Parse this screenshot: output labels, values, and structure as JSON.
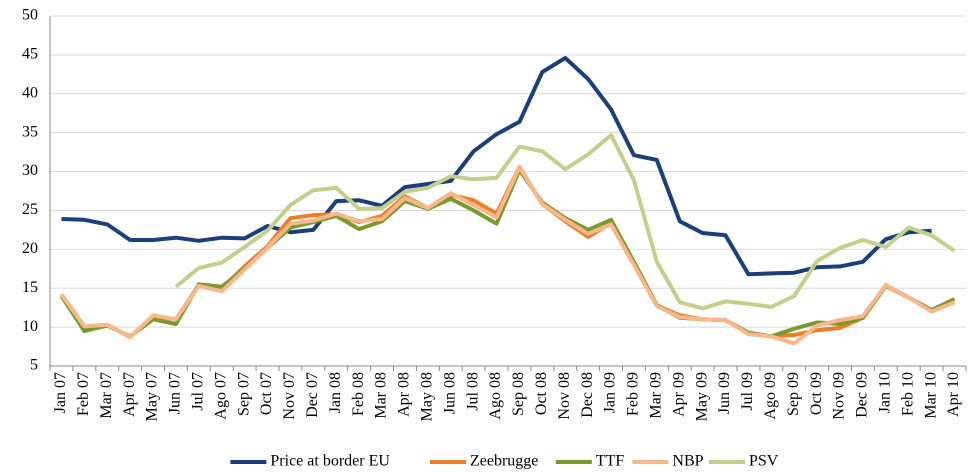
{
  "chart_data": {
    "type": "line",
    "categories": [
      "Jan 07",
      "Feb 07",
      "Mar 07",
      "Apr 07",
      "May 07",
      "Jun 07",
      "Jul 07",
      "Ago 07",
      "Sep 07",
      "Oct 07",
      "Nov 07",
      "Dec 07",
      "Jan 08",
      "Feb 08",
      "Mar 08",
      "Apr 08",
      "May 08",
      "Jun 08",
      "Jul 08",
      "Ago 08",
      "Sep 08",
      "Oct 08",
      "Nov 08",
      "Dec 08",
      "Jan 09",
      "Feb 09",
      "Mar 09",
      "Apr 09",
      "May 09",
      "Jun 09",
      "Jul 09",
      "Ago 09",
      "Sep 09",
      "Oct 09",
      "Nov 09",
      "Dec 09",
      "Jan 10",
      "Feb 10",
      "Mar 10",
      "Apr 10"
    ],
    "series": [
      {
        "name": "Price at border EU",
        "color": "#1b3f7a",
        "values": [
          23.9,
          23.8,
          23.2,
          21.2,
          21.2,
          21.5,
          21.1,
          21.5,
          21.4,
          23.0,
          22.2,
          22.5,
          26.2,
          26.3,
          25.6,
          28.0,
          28.4,
          28.8,
          32.6,
          34.8,
          36.4,
          42.8,
          44.6,
          41.9,
          38.0,
          32.1,
          31.5,
          23.6,
          22.1,
          21.8,
          16.8,
          16.9,
          17.0,
          17.7,
          17.8,
          18.4,
          21.3,
          22.2,
          22.4,
          null
        ]
      },
      {
        "name": "Zeebrugge",
        "color": "#f07c28",
        "values": [
          14.2,
          10.0,
          10.3,
          8.7,
          11.4,
          11.0,
          15.4,
          15.0,
          17.8,
          20.4,
          24.0,
          24.4,
          24.5,
          23.5,
          24.3,
          26.8,
          25.3,
          27.0,
          26.3,
          24.6,
          30.6,
          25.8,
          23.6,
          21.6,
          23.4,
          18.2,
          12.8,
          11.5,
          11.0,
          10.9,
          9.2,
          8.8,
          9.0,
          9.6,
          9.9,
          11.2,
          15.4,
          13.8,
          12.2,
          13.2
        ]
      },
      {
        "name": "TTF",
        "color": "#7a9a2e",
        "values": [
          14.0,
          9.5,
          10.2,
          8.8,
          11.0,
          10.4,
          15.5,
          15.2,
          17.5,
          20.2,
          22.8,
          23.5,
          24.3,
          22.6,
          23.6,
          26.2,
          25.2,
          26.5,
          25.0,
          23.3,
          30.2,
          26.0,
          24.0,
          22.5,
          23.8,
          18.4,
          12.8,
          11.2,
          11.0,
          10.9,
          9.3,
          8.8,
          9.8,
          10.6,
          10.4,
          11.2,
          15.3,
          13.8,
          12.2,
          13.6
        ]
      },
      {
        "name": "NBP",
        "color": "#f9b78c",
        "values": [
          14.2,
          10.1,
          10.3,
          8.7,
          11.5,
          11.0,
          15.3,
          14.6,
          17.4,
          20.2,
          23.3,
          23.7,
          24.6,
          23.6,
          23.9,
          26.6,
          25.3,
          27.2,
          25.7,
          24.1,
          30.6,
          25.8,
          23.8,
          22.0,
          23.2,
          18.0,
          12.7,
          11.3,
          11.0,
          10.9,
          9.1,
          8.8,
          7.9,
          10.2,
          10.9,
          11.4,
          15.4,
          13.8,
          12.0,
          13.2
        ]
      },
      {
        "name": "PSV",
        "color": "#c5cf8c",
        "values": [
          null,
          null,
          null,
          null,
          null,
          15.2,
          17.6,
          18.3,
          20.3,
          22.4,
          25.7,
          27.6,
          27.9,
          25.2,
          25.3,
          27.4,
          27.9,
          29.4,
          29.0,
          29.2,
          33.2,
          32.6,
          30.3,
          32.2,
          34.7,
          28.9,
          18.4,
          13.2,
          12.4,
          13.3,
          13.0,
          12.6,
          14.0,
          18.5,
          20.2,
          21.2,
          20.3,
          22.8,
          21.8,
          19.8
        ]
      }
    ],
    "ylim": [
      5,
      50
    ],
    "yticks": [
      5,
      10,
      15,
      20,
      25,
      30,
      35,
      40,
      45,
      50
    ],
    "grid": true,
    "legend": "bottom"
  }
}
